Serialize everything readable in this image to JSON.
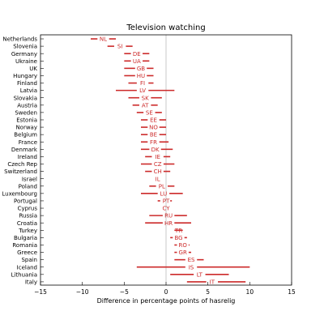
{
  "chart_data": {
    "type": "interval",
    "title": "Television watching",
    "xlabel": "Difference in percentage points of hasrelig",
    "ylabel": "",
    "xlim": [
      -15,
      15
    ],
    "xticks": [
      -15,
      -10,
      -5,
      0,
      5,
      10,
      15
    ],
    "xtick_labels": [
      "−15",
      "−10",
      "−5",
      "0",
      "5",
      "10",
      "15"
    ],
    "grid": false,
    "zero_line": true,
    "colors": {
      "interval": "#cc2a2a",
      "zero_line": "#c8c8c8",
      "axis": "#000000"
    },
    "rows": [
      {
        "country": "Netherlands",
        "code": "NL",
        "estimate": -7.5,
        "low": -9.0,
        "high": -6.0
      },
      {
        "country": "Slovenia",
        "code": "SI",
        "estimate": -5.5,
        "low": -7.0,
        "high": -4.0
      },
      {
        "country": "Germany",
        "code": "DE",
        "estimate": -3.5,
        "low": -5.0,
        "high": -2.0
      },
      {
        "country": "Ukraine",
        "code": "UA",
        "estimate": -3.5,
        "low": -5.0,
        "high": -2.0
      },
      {
        "country": "UK",
        "code": "GB",
        "estimate": -3.0,
        "low": -5.0,
        "high": -1.5
      },
      {
        "country": "Hungary",
        "code": "HU",
        "estimate": -3.0,
        "low": -5.0,
        "high": -1.5
      },
      {
        "country": "Finland",
        "code": "FI",
        "estimate": -2.8,
        "low": -4.5,
        "high": -1.5
      },
      {
        "country": "Latvia",
        "code": "LV",
        "estimate": -2.8,
        "low": -6.0,
        "high": 1.0
      },
      {
        "country": "Slovakia",
        "code": "SK",
        "estimate": -2.5,
        "low": -4.5,
        "high": -0.5
      },
      {
        "country": "Austria",
        "code": "AT",
        "estimate": -2.5,
        "low": -4.0,
        "high": -1.0
      },
      {
        "country": "Sweden",
        "code": "SE",
        "estimate": -2.0,
        "low": -3.5,
        "high": -0.5
      },
      {
        "country": "Estonia",
        "code": "EE",
        "estimate": -1.5,
        "low": -3.0,
        "high": 0.0
      },
      {
        "country": "Norway",
        "code": "NO",
        "estimate": -1.5,
        "low": -3.0,
        "high": 0.0
      },
      {
        "country": "Belgium",
        "code": "BE",
        "estimate": -1.5,
        "low": -3.0,
        "high": 0.0
      },
      {
        "country": "France",
        "code": "FR",
        "estimate": -1.5,
        "low": -3.0,
        "high": 0.3
      },
      {
        "country": "Denmark",
        "code": "DK",
        "estimate": -1.3,
        "low": -3.0,
        "high": 0.8
      },
      {
        "country": "Ireland",
        "code": "IE",
        "estimate": -1.0,
        "low": -2.5,
        "high": 0.5
      },
      {
        "country": "Czech Rep",
        "code": "CZ",
        "estimate": -1.0,
        "low": -3.0,
        "high": 1.0
      },
      {
        "country": "Switzerland",
        "code": "CH",
        "estimate": -1.0,
        "low": -2.5,
        "high": 0.5
      },
      {
        "country": "Israel",
        "code": "IL",
        "estimate": -1.0,
        "low": -1.0,
        "high": -1.0
      },
      {
        "country": "Poland",
        "code": "PL",
        "estimate": -0.5,
        "low": -2.0,
        "high": 1.0
      },
      {
        "country": "Luxembourg",
        "code": "LU",
        "estimate": -0.3,
        "low": -3.0,
        "high": 2.0
      },
      {
        "country": "Portugal",
        "code": "PT",
        "estimate": 0.0,
        "low": -1.0,
        "high": 0.5
      },
      {
        "country": "Cyprus",
        "code": "CY",
        "estimate": 0.0,
        "low": 0.0,
        "high": 0.0
      },
      {
        "country": "Russia",
        "code": "RU",
        "estimate": 0.3,
        "low": -2.0,
        "high": 2.5
      },
      {
        "country": "Croatia",
        "code": "HR",
        "estimate": 0.3,
        "low": -2.5,
        "high": 3.0
      },
      {
        "country": "Turkey",
        "code": "TR",
        "estimate": 1.5,
        "low": 1.0,
        "high": 2.0
      },
      {
        "country": "Bulgaria",
        "code": "BG",
        "estimate": 1.5,
        "low": 0.5,
        "high": 2.5
      },
      {
        "country": "Romania",
        "code": "RO",
        "estimate": 2.0,
        "low": 1.0,
        "high": 2.8
      },
      {
        "country": "Greece",
        "code": "GR",
        "estimate": 2.0,
        "low": 1.0,
        "high": 3.0
      },
      {
        "country": "Spain",
        "code": "ES",
        "estimate": 3.0,
        "low": 1.0,
        "high": 4.5
      },
      {
        "country": "Iceland",
        "code": "IS",
        "estimate": 3.0,
        "low": -3.5,
        "high": 10.0
      },
      {
        "country": "Lithuania",
        "code": "LT",
        "estimate": 4.0,
        "low": 0.5,
        "high": 7.5
      },
      {
        "country": "Italy",
        "code": "IT",
        "estimate": 5.5,
        "low": 2.5,
        "high": 9.5
      }
    ]
  }
}
